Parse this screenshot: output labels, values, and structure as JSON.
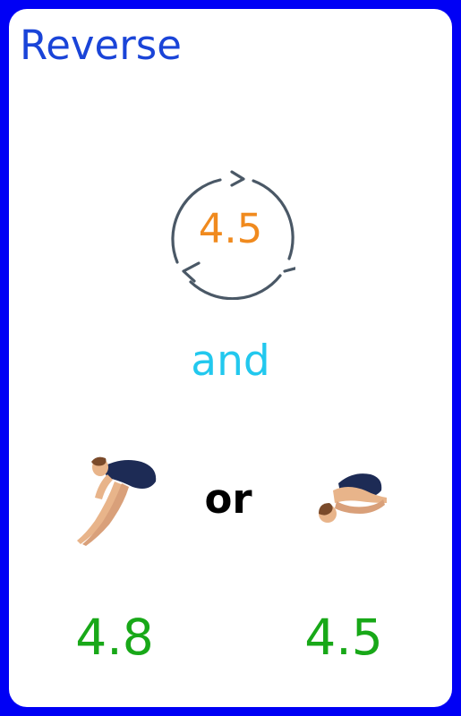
{
  "card": {
    "title": "Reverse",
    "rotation_value": "4.5",
    "connector": "and",
    "separator": "or",
    "positions": [
      {
        "name": "pike",
        "icon": "pike-diver-icon",
        "score": "4.8"
      },
      {
        "name": "tuck",
        "icon": "tuck-diver-icon",
        "score": "4.5"
      }
    ]
  },
  "colors": {
    "background": "#0000f5",
    "title": "#1a44d8",
    "rotation_value": "#f08a1e",
    "connector": "#22c8ee",
    "scores": "#18a818",
    "rotate_icon": "#4a5866"
  }
}
